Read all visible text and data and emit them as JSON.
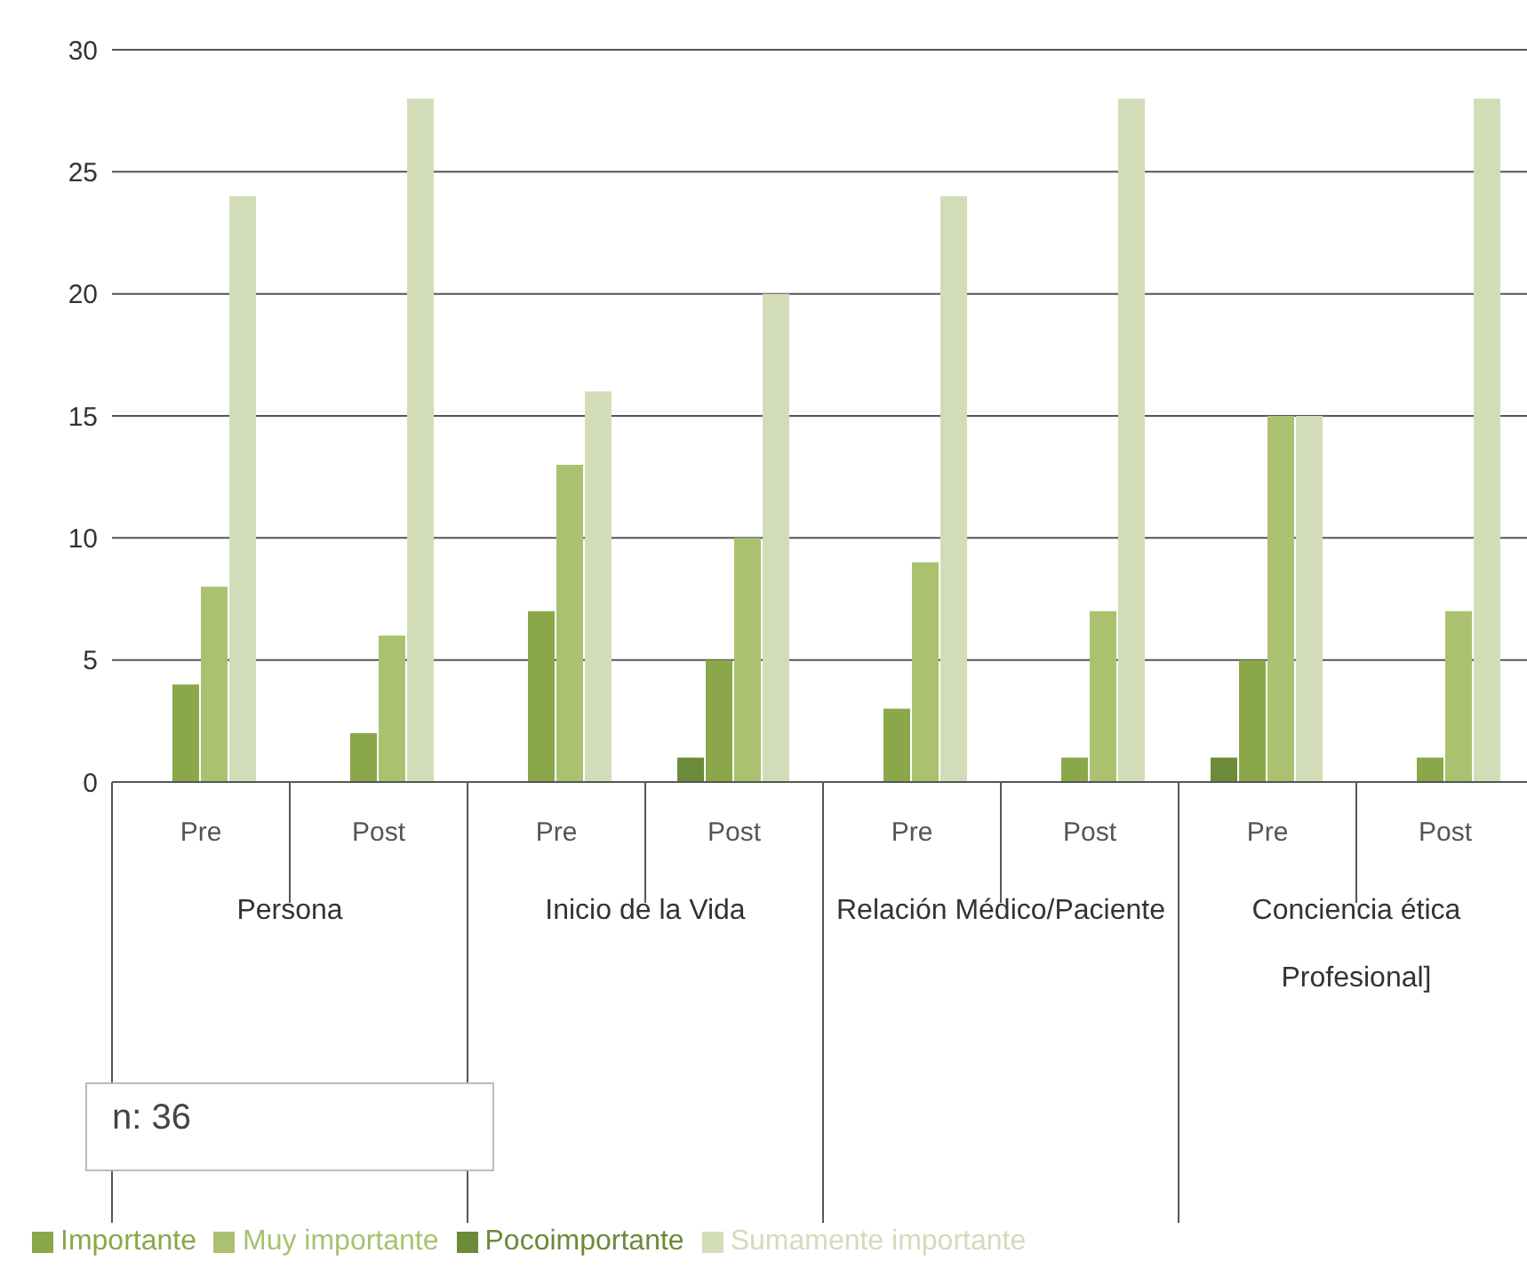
{
  "chart_data": {
    "type": "bar",
    "categories": [
      "Pre",
      "Post",
      "Pre",
      "Post",
      "Pre",
      "Post",
      "Pre",
      "Post"
    ],
    "series": [
      {
        "name": "Pocoimportante",
        "color": "#6b8a3a",
        "values": [
          0,
          0,
          0,
          1,
          0,
          0,
          1,
          0
        ]
      },
      {
        "name": "Importante",
        "color": "#8aa84a",
        "values": [
          4,
          2,
          7,
          5,
          3,
          1,
          5,
          1
        ]
      },
      {
        "name": "Muy importante",
        "color": "#aac170",
        "values": [
          8,
          6,
          13,
          10,
          9,
          7,
          15,
          7
        ]
      },
      {
        "name": "Sumamente importante",
        "color": "#d2ddb8",
        "values": [
          24,
          28,
          16,
          20,
          24,
          28,
          15,
          28
        ]
      }
    ],
    "ylim": [
      0,
      30
    ],
    "yticks": [
      0,
      5,
      10,
      15,
      20,
      25,
      30
    ],
    "grid": "y",
    "legend": "bottom",
    "annotations": [
      "Persona",
      "Inicio de la Vida",
      "Relación Médico/Paciente",
      "Conciencia ética Profesional]",
      "n: 36"
    ]
  }
}
